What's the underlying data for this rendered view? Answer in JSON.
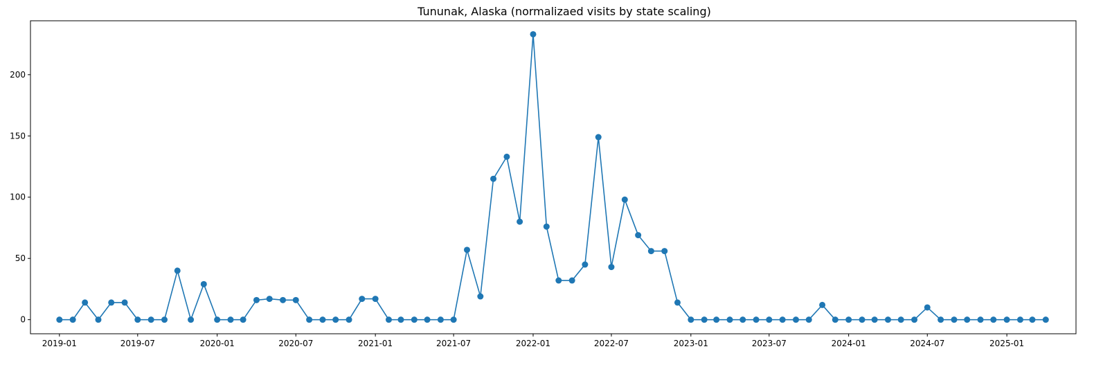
{
  "chart_data": {
    "type": "line",
    "title": "Tununak, Alaska (normalizaed visits by state scaling)",
    "xlabel": "",
    "ylabel": "",
    "x_tick_labels": [
      "2019-01",
      "2019-07",
      "2020-01",
      "2020-07",
      "2021-01",
      "2021-07",
      "2022-01",
      "2022-07",
      "2023-01",
      "2023-07",
      "2024-01",
      "2024-07",
      "2025-01"
    ],
    "y_tick_labels": [
      "0",
      "50",
      "100",
      "150",
      "200"
    ],
    "xlim": [
      "2018-10-26",
      "2025-06-10"
    ],
    "ylim": [
      -11.5,
      244
    ],
    "grid": false,
    "legend": "none",
    "series": [
      {
        "color": "#1f77b4",
        "marker": "circle",
        "x": [
          "2019-01",
          "2019-02",
          "2019-03",
          "2019-04",
          "2019-05",
          "2019-06",
          "2019-07",
          "2019-08",
          "2019-09",
          "2019-10",
          "2019-11",
          "2019-12",
          "2020-01",
          "2020-02",
          "2020-03",
          "2020-04",
          "2020-05",
          "2020-06",
          "2020-07",
          "2020-08",
          "2020-09",
          "2020-10",
          "2020-11",
          "2020-12",
          "2021-01",
          "2021-02",
          "2021-03",
          "2021-04",
          "2021-05",
          "2021-06",
          "2021-07",
          "2021-08",
          "2021-09",
          "2021-10",
          "2021-11",
          "2021-12",
          "2022-01",
          "2022-02",
          "2022-03",
          "2022-04",
          "2022-05",
          "2022-06",
          "2022-07",
          "2022-08",
          "2022-09",
          "2022-10",
          "2022-11",
          "2022-12",
          "2023-01",
          "2023-02",
          "2023-03",
          "2023-04",
          "2023-05",
          "2023-06",
          "2023-07",
          "2023-08",
          "2023-09",
          "2023-10",
          "2023-11",
          "2023-12",
          "2024-01",
          "2024-02",
          "2024-03",
          "2024-04",
          "2024-05",
          "2024-06",
          "2024-07",
          "2024-08",
          "2024-09",
          "2024-10",
          "2024-11",
          "2024-12",
          "2025-01",
          "2025-02",
          "2025-03",
          "2025-04"
        ],
        "y": [
          0,
          0,
          14,
          0,
          14,
          14,
          0,
          0,
          0,
          40,
          0,
          29,
          0,
          0,
          0,
          16,
          17,
          16,
          16,
          0,
          0,
          0,
          0,
          17,
          17,
          0,
          0,
          0,
          0,
          0,
          0,
          57,
          19,
          115,
          133,
          80,
          233,
          76,
          32,
          32,
          45,
          149,
          43,
          98,
          69,
          56,
          56,
          14,
          0,
          0,
          0,
          0,
          0,
          0,
          0,
          0,
          0,
          0,
          12,
          0,
          0,
          0,
          0,
          0,
          0,
          0,
          10,
          0,
          0,
          0,
          0,
          0,
          0,
          0,
          0,
          0
        ]
      }
    ],
    "colors": {
      "line": "#1f77b4",
      "marker": "#1f77b4",
      "axes": "#000000"
    }
  }
}
